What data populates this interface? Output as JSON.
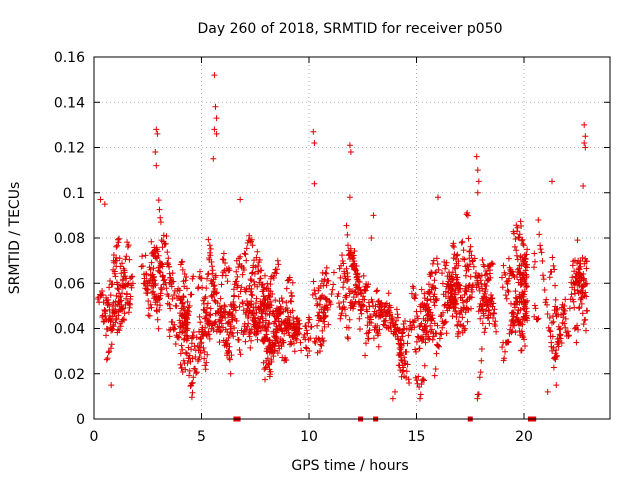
{
  "chart_data": {
    "type": "scatter",
    "title": "Day 260 of 2018, SRMTID for receiver p050",
    "xlabel": "GPS time / hours",
    "ylabel": "SRMTID / TECUs",
    "xlim": [
      0,
      24
    ],
    "ylim": [
      0,
      0.16
    ],
    "xticks": [
      0,
      5,
      10,
      15,
      20
    ],
    "xtick_labels": [
      "0",
      "5",
      "10",
      "15",
      "20"
    ],
    "yticks": [
      0,
      0.02,
      0.04,
      0.06,
      0.08,
      0.1,
      0.12,
      0.14,
      0.16
    ],
    "ytick_labels": [
      "0",
      "0.02",
      "0.04",
      "0.06",
      "0.08",
      "0.1",
      "0.12",
      "0.14",
      "0.16"
    ],
    "grid": true,
    "marker": "+",
    "marker_color": "#e00000",
    "series": [
      {
        "name": "SRMTID",
        "note": "~2300 points; dense baseline cloud ~0.02-0.08 TECU with spikes; generated from this profile",
        "profile_x": [
          0,
          0.5,
          1,
          1.5,
          2,
          2.5,
          2.9,
          3.2,
          3.6,
          4,
          4.5,
          5,
          5.6,
          5.9,
          6.3,
          7,
          7.5,
          8,
          8.5,
          9,
          9.5,
          10,
          10.3,
          10.8,
          11.2,
          11.8,
          12.2,
          12.7,
          13.2,
          13.7,
          14.2,
          14.8,
          15.5,
          16,
          16.5,
          17,
          17.5,
          18,
          18.5,
          19,
          19.5,
          20,
          20.5,
          21,
          21.5,
          22,
          22.5,
          22.9
        ],
        "profile_center": [
          0.045,
          0.05,
          0.055,
          0.055,
          0.06,
          0.06,
          0.065,
          0.06,
          0.045,
          0.04,
          0.045,
          0.045,
          0.06,
          0.06,
          0.05,
          0.05,
          0.045,
          0.05,
          0.05,
          0.045,
          0.04,
          0.04,
          0.045,
          0.05,
          0.055,
          0.06,
          0.055,
          0.045,
          0.04,
          0.04,
          0.03,
          0.035,
          0.045,
          0.05,
          0.055,
          0.06,
          0.055,
          0.05,
          0.05,
          0.05,
          0.055,
          0.05,
          0.045,
          0.05,
          0.04,
          0.05,
          0.055,
          0.06
        ],
        "profile_spread": [
          0.014,
          0.016,
          0.017,
          0.017,
          0.018,
          0.02,
          0.028,
          0.02,
          0.016,
          0.015,
          0.016,
          0.017,
          0.03,
          0.02,
          0.017,
          0.017,
          0.016,
          0.017,
          0.017,
          0.016,
          0.015,
          0.017,
          0.018,
          0.017,
          0.018,
          0.02,
          0.018,
          0.016,
          0.015,
          0.014,
          0.012,
          0.013,
          0.016,
          0.02,
          0.022,
          0.022,
          0.02,
          0.022,
          0.02,
          0.017,
          0.018,
          0.016,
          0.017,
          0.018,
          0.015,
          0.018,
          0.02,
          0.02
        ],
        "highlights": [
          {
            "x": 5.6,
            "y": 0.152
          },
          {
            "x": 5.65,
            "y": 0.138
          },
          {
            "x": 5.7,
            "y": 0.133
          },
          {
            "x": 5.6,
            "y": 0.128
          },
          {
            "x": 5.7,
            "y": 0.126
          },
          {
            "x": 5.55,
            "y": 0.115
          },
          {
            "x": 2.9,
            "y": 0.128
          },
          {
            "x": 2.95,
            "y": 0.126
          },
          {
            "x": 2.85,
            "y": 0.118
          },
          {
            "x": 2.9,
            "y": 0.112
          },
          {
            "x": 10.2,
            "y": 0.127
          },
          {
            "x": 10.25,
            "y": 0.122
          },
          {
            "x": 10.25,
            "y": 0.104
          },
          {
            "x": 11.9,
            "y": 0.121
          },
          {
            "x": 11.95,
            "y": 0.118
          },
          {
            "x": 11.9,
            "y": 0.098
          },
          {
            "x": 22.8,
            "y": 0.13
          },
          {
            "x": 22.85,
            "y": 0.125
          },
          {
            "x": 22.8,
            "y": 0.122
          },
          {
            "x": 22.85,
            "y": 0.12
          },
          {
            "x": 22.75,
            "y": 0.103
          },
          {
            "x": 17.8,
            "y": 0.116
          },
          {
            "x": 17.85,
            "y": 0.11
          },
          {
            "x": 17.9,
            "y": 0.105
          },
          {
            "x": 17.85,
            "y": 0.1
          },
          {
            "x": 21.3,
            "y": 0.105
          },
          {
            "x": 0.3,
            "y": 0.097
          },
          {
            "x": 0.5,
            "y": 0.095
          },
          {
            "x": 6.8,
            "y": 0.097
          },
          {
            "x": 13.0,
            "y": 0.09
          },
          {
            "x": 16.0,
            "y": 0.098
          },
          {
            "x": 12.9,
            "y": 0.08
          },
          {
            "x": 13.9,
            "y": 0.009
          },
          {
            "x": 14.0,
            "y": 0.012
          },
          {
            "x": 0.8,
            "y": 0.015
          },
          {
            "x": 21.1,
            "y": 0.012
          },
          {
            "x": 21.5,
            "y": 0.015
          }
        ],
        "zero_points_x": [
          6.6,
          6.7,
          12.4,
          13.1,
          17.5,
          20.3,
          20.45
        ]
      }
    ]
  }
}
